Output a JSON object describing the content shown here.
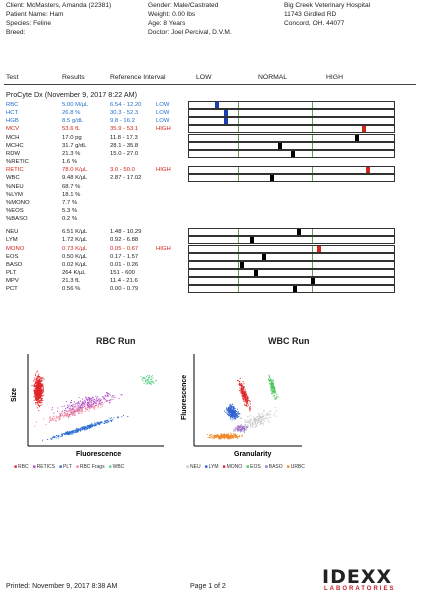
{
  "header": {
    "client": "Client: McMasters, Amanda (22381)",
    "patient": "Patient Name: Ham",
    "species": "Species: Feline",
    "breed": "Breed:",
    "gender": "Gender: Male/Castrated",
    "weight": "Weight: 0.00 lbs",
    "age": "Age: 8 Years",
    "doctor": "Doctor: Joel Percival, D.V.M.",
    "hospital_name": "Big Creek Veterinary Hospital",
    "hospital_addr": "11743 Girdled RD",
    "hospital_city": "Concord, OH. 44077"
  },
  "columns": {
    "test": "Test",
    "results": "Results",
    "ref": "Reference Interval",
    "low": "LOW",
    "normal": "NORMAL",
    "high": "HIGH"
  },
  "section_title": "ProCyte Dx (November 9, 2017 8:22 AM)",
  "rows": [
    {
      "name": "RBC",
      "value": "5.00 M/µL",
      "ref": "6.54 - 12.20",
      "flag": "LOW",
      "color": "blue",
      "marker": 0.13
    },
    {
      "name": "HCT",
      "value": "26.8 %",
      "ref": "30.3 - 52.3",
      "flag": "LOW",
      "color": "blue",
      "marker": 0.17
    },
    {
      "name": "HGB",
      "value": "8.5 g/dL",
      "ref": "9.8 - 16.2",
      "flag": "LOW",
      "color": "blue",
      "marker": 0.17
    },
    {
      "name": "MCV",
      "value": "53.6 fL",
      "ref": "35.9 - 53.1",
      "flag": "HIGH",
      "color": "red",
      "marker": 0.85
    },
    {
      "name": "MCH",
      "value": "17.0 pg",
      "ref": "11.8 - 17.3",
      "flag": "",
      "color": "",
      "marker": 0.82
    },
    {
      "name": "MCHC",
      "value": "31.7 g/dL",
      "ref": "28.1 - 35.8",
      "flag": "",
      "color": "",
      "marker": 0.44
    },
    {
      "name": "RDW",
      "value": "21.3 %",
      "ref": "15.0 - 27.0",
      "flag": "",
      "color": "",
      "marker": 0.5
    },
    {
      "name": "%RETIC",
      "value": "1.6 %",
      "ref": "",
      "flag": "",
      "color": "",
      "marker": null
    },
    {
      "name": "RETIC",
      "value": "78.0 K/µL",
      "ref": "3.0 - 50.0",
      "flag": "HIGH",
      "color": "red",
      "marker": 0.87
    },
    {
      "name": "WBC",
      "value": "9.48 K/µL",
      "ref": "2.87 - 17.02",
      "flag": "",
      "color": "",
      "marker": 0.4
    },
    {
      "name": "%NEU",
      "value": "68.7 %",
      "ref": "",
      "flag": "",
      "color": "",
      "marker": null
    },
    {
      "name": "%LYM",
      "value": "18.1 %",
      "ref": "",
      "flag": "",
      "color": "",
      "marker": null
    },
    {
      "name": "%MONO",
      "value": "7.7 %",
      "ref": "",
      "flag": "",
      "color": "",
      "marker": null
    },
    {
      "name": "%EOS",
      "value": "5.3 %",
      "ref": "",
      "flag": "",
      "color": "",
      "marker": null
    },
    {
      "name": "%BASO",
      "value": "0.2 %",
      "ref": "",
      "flag": "",
      "color": "",
      "marker": null
    },
    {
      "name": "NEU",
      "value": "6.51 K/µL",
      "ref": "1.48 - 10.29",
      "flag": "",
      "color": "",
      "marker": 0.53
    },
    {
      "name": "LYM",
      "value": "1.72 K/µL",
      "ref": "0.92 - 6.88",
      "flag": "",
      "color": "",
      "marker": 0.3
    },
    {
      "name": "MONO",
      "value": "0.73 K/µL",
      "ref": "0.05 - 0.67",
      "flag": "HIGH",
      "color": "red",
      "marker": 0.63
    },
    {
      "name": "EOS",
      "value": "0.50 K/µL",
      "ref": "0.17 - 1.57",
      "flag": "",
      "color": "",
      "marker": 0.36
    },
    {
      "name": "BASO",
      "value": "0.02 K/µL",
      "ref": "0.01 - 0.26",
      "flag": "",
      "color": "",
      "marker": 0.25
    },
    {
      "name": "PLT",
      "value": "264 K/µL",
      "ref": "151 - 600",
      "flag": "",
      "color": "",
      "marker": 0.32
    },
    {
      "name": "MPV",
      "value": "21.3 fL",
      "ref": "11.4 - 21.6",
      "flag": "",
      "color": "",
      "marker": 0.6
    },
    {
      "name": "PCT",
      "value": "0.56 %",
      "ref": "0.00 - 0.79",
      "flag": "",
      "color": "",
      "marker": 0.51
    }
  ],
  "rbc_plot": {
    "title": "RBC Run",
    "ylabel": "Size",
    "xlabel": "Fluorescence",
    "legend": [
      "RBC",
      "RETICS",
      "PLT",
      "RBC Frags",
      "WBC"
    ],
    "legend_colors": [
      "#e0262a",
      "#b04cc8",
      "#2f6fd0",
      "#f08aa0",
      "#5fd08a"
    ]
  },
  "wbc_plot": {
    "title": "WBC Run",
    "ylabel": "Fluorescence",
    "xlabel": "Granularity",
    "legend": [
      "NEU",
      "LYM",
      "MONO",
      "EOS",
      "BASO",
      "URBC"
    ],
    "legend_colors": [
      "#c8c8c8",
      "#3060d0",
      "#e0262a",
      "#4cc860",
      "#9a6cd0",
      "#f08a2a"
    ]
  },
  "footer": {
    "printed": "Printed: November 9, 2017 8:38 AM",
    "page": "Page 1 of 2",
    "logo": "IDEXX",
    "logo_sub": "LABORATORIES"
  }
}
